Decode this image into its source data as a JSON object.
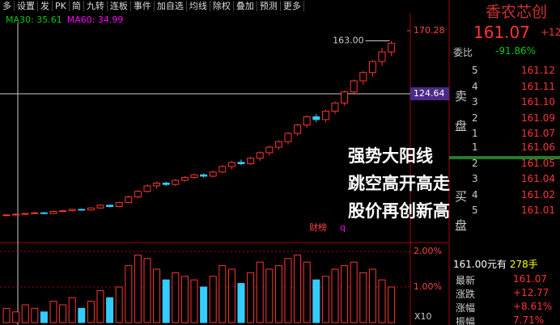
{
  "toolbar": [
    "多",
    "设置",
    "发",
    "PK",
    "简",
    "九转",
    "连板",
    "事件",
    "加自选",
    "均线",
    "除权",
    "叠加",
    "预测",
    "更多"
  ],
  "legend": [
    "MA30: 35.61",
    "MA60: 34.99"
  ],
  "price_axis": {
    "top": {
      "value": 170.28,
      "label": "170.28"
    },
    "cross": {
      "value": 124.64,
      "label": "124.64"
    }
  },
  "high_label": {
    "value": 163,
    "label": "163.00"
  },
  "candles": [
    [
      36.5,
      37.5,
      36,
      37
    ],
    [
      37,
      38,
      36.5,
      37.5
    ],
    [
      37.5,
      38.5,
      37,
      38
    ],
    [
      38,
      39,
      37.5,
      38.5
    ],
    [
      38.5,
      39,
      37.5,
      38
    ],
    [
      38,
      40,
      37.5,
      39.5
    ],
    [
      39.5,
      40.5,
      39,
      40
    ],
    [
      40,
      41.5,
      39.5,
      41
    ],
    [
      41,
      41.5,
      40,
      40.5
    ],
    [
      40.5,
      42.5,
      40,
      42
    ],
    [
      42,
      44.5,
      41.5,
      44
    ],
    [
      44,
      44.5,
      42.5,
      43
    ],
    [
      43,
      46.5,
      42.5,
      46
    ],
    [
      46,
      51,
      45.5,
      50
    ],
    [
      50,
      55,
      49,
      54
    ],
    [
      54,
      59,
      53,
      58
    ],
    [
      58,
      61,
      56,
      60
    ],
    [
      60,
      61,
      58,
      59
    ],
    [
      59,
      63,
      58,
      62
    ],
    [
      62,
      65,
      61,
      64
    ],
    [
      64,
      67,
      63,
      66
    ],
    [
      66,
      67,
      64,
      65
    ],
    [
      65,
      69,
      64,
      68
    ],
    [
      68,
      73,
      67,
      72
    ],
    [
      72,
      76,
      70,
      75
    ],
    [
      75,
      77,
      73,
      74
    ],
    [
      74,
      79,
      73,
      78
    ],
    [
      78,
      83,
      76,
      82
    ],
    [
      82,
      87,
      80,
      86
    ],
    [
      86,
      91,
      84,
      90
    ],
    [
      90,
      97,
      88,
      96
    ],
    [
      96,
      103,
      94,
      102
    ],
    [
      102,
      109,
      100,
      108
    ],
    [
      108,
      110,
      104,
      106
    ],
    [
      106,
      113,
      104,
      112
    ],
    [
      112,
      119,
      110,
      118
    ],
    [
      118,
      127,
      116,
      126
    ],
    [
      126,
      135,
      124,
      134
    ],
    [
      134,
      141,
      131,
      140
    ],
    [
      140,
      149,
      137,
      148
    ],
    [
      148,
      158,
      145,
      155
    ],
    [
      155,
      163,
      152,
      161.07
    ]
  ],
  "volume": [
    0.4,
    0.3,
    0.5,
    0.4,
    0.3,
    0.6,
    0.5,
    0.7,
    0.4,
    0.6,
    0.9,
    0.7,
    1.0,
    1.6,
    1.9,
    1.8,
    1.5,
    1.2,
    1.4,
    1.3,
    1.2,
    1.0,
    1.3,
    1.6,
    1.5,
    1.1,
    1.4,
    1.7,
    1.5,
    1.6,
    1.8,
    1.9,
    1.7,
    1.2,
    1.3,
    1.5,
    1.6,
    1.7,
    1.4,
    1.5,
    1.2,
    1.0
  ],
  "volume_ticks": [
    {
      "value": 2,
      "label": "2.00%"
    },
    {
      "value": 1,
      "label": "1.00%"
    }
  ],
  "volume_label": "X10",
  "event_tag": "财榜",
  "event_q": "q",
  "annotation": [
    "强势大阳线",
    "跳空高开高走",
    "股价再创新高"
  ],
  "panel": {
    "name": "香农芯创",
    "price": "161.07",
    "change_cut": "+12",
    "ratio_label": "委比",
    "ratio": "-91.86%",
    "sell_label": [
      "卖",
      "盘"
    ],
    "buy_label": [
      "买",
      "盘"
    ],
    "sell": [
      [
        "5",
        "161.12"
      ],
      [
        "4",
        "161.11"
      ],
      [
        "3",
        "161.10"
      ],
      [
        "2",
        "161.09"
      ],
      [
        "1",
        "161.07"
      ]
    ],
    "buy": [
      [
        "1",
        "161.06"
      ],
      [
        "2",
        "161.05"
      ],
      [
        "3",
        "161.04"
      ],
      [
        "4",
        "161.02"
      ],
      [
        "5",
        "161.01"
      ]
    ],
    "trade": [
      "161.00元有",
      "278手"
    ],
    "quotes": [
      [
        "最新",
        "161.07"
      ],
      [
        "涨跌",
        "+12.77"
      ],
      [
        "涨幅",
        "+8.61%"
      ],
      [
        "振幅",
        "7.71%"
      ]
    ]
  }
}
